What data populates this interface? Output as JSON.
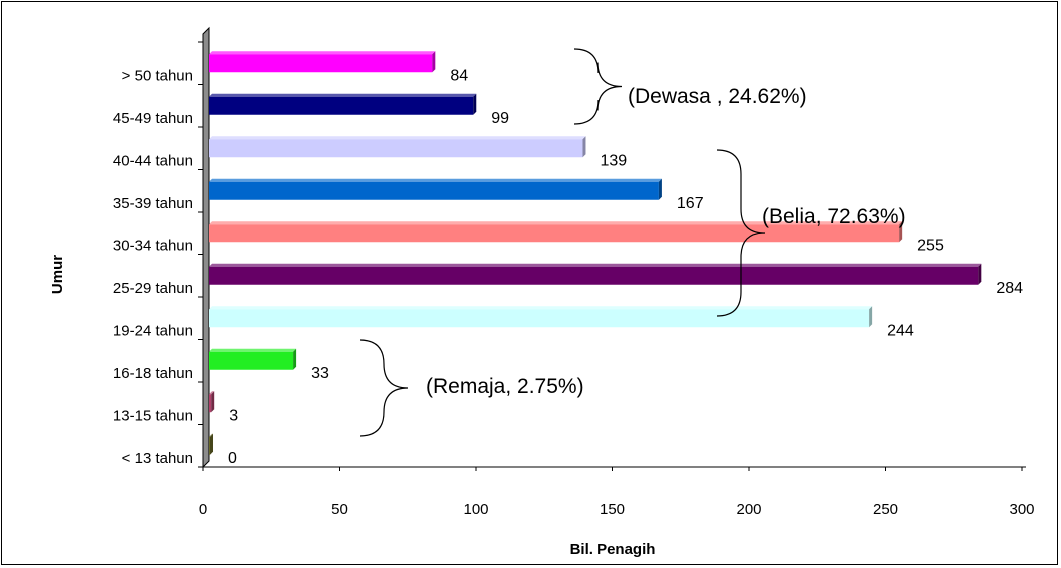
{
  "chart_data": {
    "type": "bar",
    "orientation": "horizontal",
    "categories": [
      "< 13 tahun",
      "13-15 tahun",
      "16-18 tahun",
      "19-24 tahun",
      "25-29 tahun",
      "30-34 tahun",
      "35-39 tahun",
      "40-44 tahun",
      "45-49 tahun",
      "> 50 tahun"
    ],
    "values": [
      0,
      3,
      33,
      244,
      284,
      255,
      167,
      139,
      99,
      84
    ],
    "value_labels": [
      "0",
      "3",
      "33",
      "244",
      "284",
      "255",
      "167",
      "139",
      "99",
      "84"
    ],
    "colors": [
      "#6b6b2a",
      "#b0406a",
      "#22ee22",
      "#ccffff",
      "#660066",
      "#ff8080",
      "#0066cc",
      "#ccccff",
      "#000080",
      "#ff00ff"
    ],
    "xlabel": "Bil. Penagih",
    "ylabel": "Umur",
    "xlim": [
      0,
      300
    ],
    "xticks": [
      "0",
      "50",
      "100",
      "150",
      "200",
      "250",
      "300"
    ],
    "grid": false,
    "legend": "none",
    "annotations": [
      {
        "text": "(Dewasa , 24.62%)",
        "group": [
          "45-49 tahun",
          "> 50 tahun"
        ]
      },
      {
        "text": "(Belia, 72.63%)",
        "group": [
          "19-24 tahun",
          "40-44 tahun"
        ]
      },
      {
        "text": "(Remaja, 2.75%)",
        "group": [
          "< 13 tahun",
          "16-18 tahun"
        ]
      }
    ]
  }
}
